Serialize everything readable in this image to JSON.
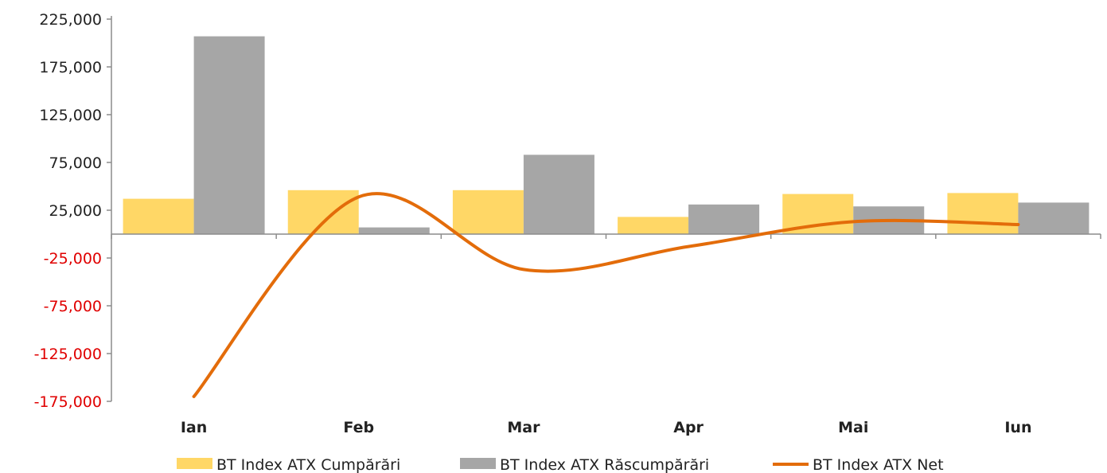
{
  "chart_data": {
    "type": "bar",
    "categories": [
      "Ian",
      "Feb",
      "Mar",
      "Apr",
      "Mai",
      "Iun"
    ],
    "series": [
      {
        "name": "BT Index ATX Cumpărări",
        "type": "bar",
        "color": "#FFD766",
        "values": [
          37000,
          46000,
          46000,
          18000,
          42000,
          43000
        ]
      },
      {
        "name": "BT Index ATX Răscumpărări",
        "type": "bar",
        "color": "#A6A6A6",
        "values": [
          207000,
          7000,
          83000,
          31000,
          29000,
          33000
        ]
      },
      {
        "name": "BT Index ATX Net",
        "type": "line",
        "color": "#E36C0A",
        "smooth": true,
        "values": [
          -170000,
          39000,
          -37000,
          -13000,
          13000,
          10000
        ]
      }
    ],
    "y_ticks": [
      225000,
      175000,
      125000,
      75000,
      25000,
      -25000,
      -75000,
      -125000,
      -175000
    ],
    "y_tick_labels": [
      "225,000",
      "175,000",
      "125,000",
      "75,000",
      "25,000",
      "-25,000",
      "-75,000",
      "-125,000",
      "-175,000"
    ],
    "negative_tick_color": "#E00000",
    "positive_tick_color": "#222222",
    "ylim": [
      -175000,
      225000
    ],
    "title": "",
    "xlabel": "",
    "ylabel": "",
    "grid": false,
    "legend_position": "bottom"
  }
}
